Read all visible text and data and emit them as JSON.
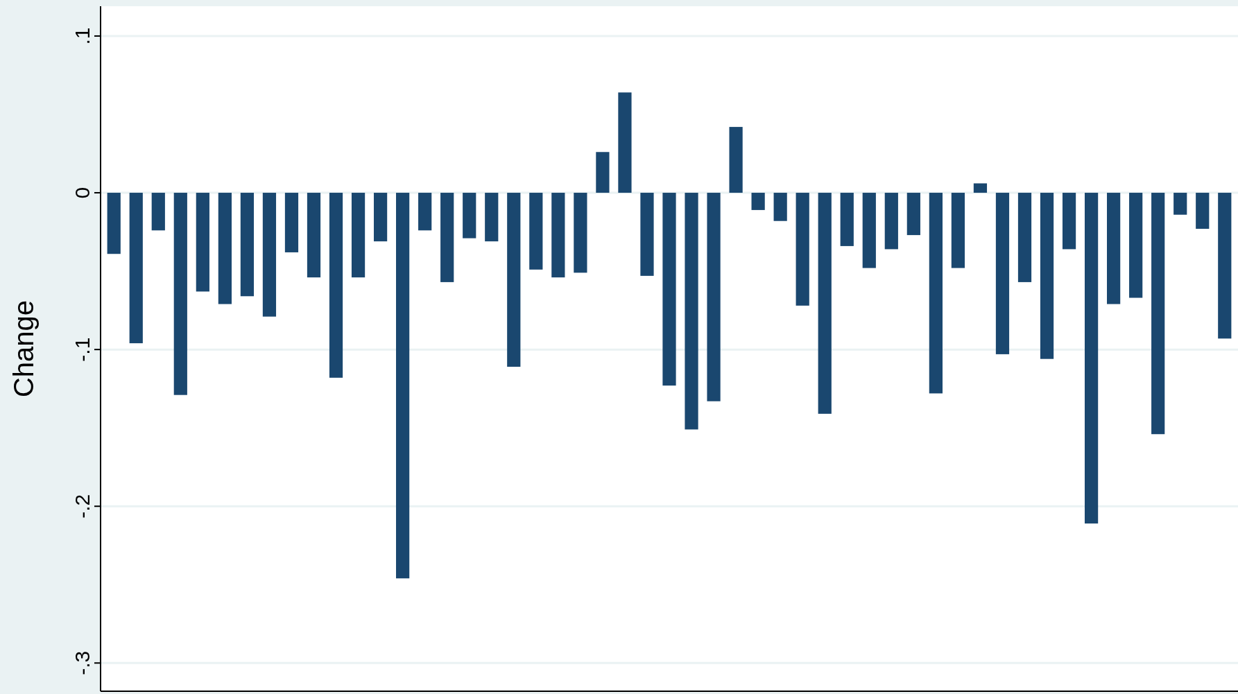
{
  "chart_data": {
    "type": "bar",
    "ylabel": "Change",
    "color": "#1a476f",
    "categories": [
      null,
      null,
      null,
      null,
      null,
      null,
      null,
      null,
      null,
      null,
      null,
      null,
      null,
      null,
      null,
      null,
      null,
      null,
      null,
      null,
      null,
      null,
      null,
      null,
      null,
      null,
      null,
      null,
      null,
      null,
      null,
      null,
      null,
      null,
      null,
      null,
      null,
      null,
      null,
      null,
      null,
      null,
      null,
      null,
      null,
      null,
      null,
      null,
      null,
      null,
      null
    ],
    "values": [
      -0.039,
      -0.096,
      -0.024,
      -0.129,
      -0.063,
      -0.071,
      -0.066,
      -0.079,
      -0.038,
      -0.054,
      -0.118,
      -0.054,
      -0.031,
      -0.246,
      -0.024,
      -0.057,
      -0.029,
      -0.031,
      -0.111,
      -0.049,
      -0.054,
      -0.051,
      0.026,
      0.064,
      -0.053,
      -0.123,
      -0.151,
      -0.133,
      0.042,
      -0.011,
      -0.018,
      -0.072,
      -0.141,
      -0.034,
      -0.048,
      -0.036,
      -0.027,
      -0.128,
      -0.048,
      0.006,
      -0.103,
      -0.057,
      -0.106,
      -0.036,
      -0.211,
      -0.071,
      -0.067,
      -0.154,
      -0.014,
      -0.023,
      -0.093
    ],
    "ylim": [
      -0.318,
      0.119
    ],
    "yticks": [
      {
        "value": 0.1,
        "label": ".1"
      },
      {
        "value": 0,
        "label": "0"
      },
      {
        "value": -0.1,
        "label": "-.1"
      },
      {
        "value": -0.2,
        "label": "-.2"
      },
      {
        "value": -0.3,
        "label": "-.3"
      }
    ],
    "grid": "y"
  }
}
